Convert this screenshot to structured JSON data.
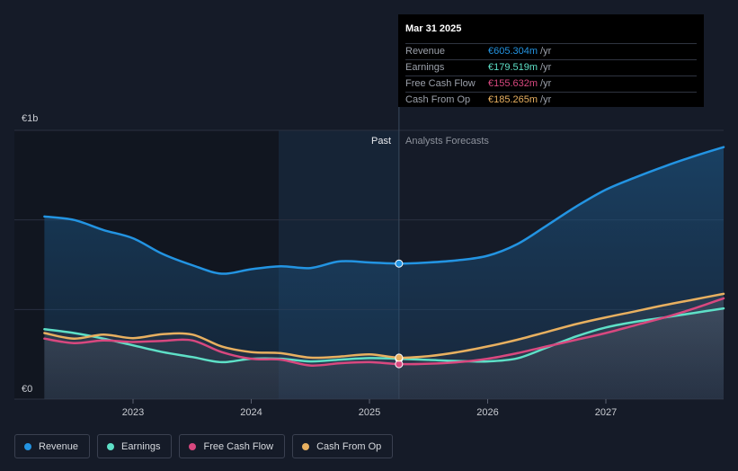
{
  "chart_data": {
    "type": "area",
    "currency_unit": "€",
    "y_axis": {
      "top_label": "€1b",
      "bottom_label": "€0",
      "ylim": [
        0,
        1200
      ]
    },
    "x_ticks": [
      "2023",
      "2024",
      "2025",
      "2026",
      "2027"
    ],
    "past_label": "Past",
    "forecast_label": "Analysts Forecasts",
    "split_date": 2025.25,
    "series": [
      {
        "name": "Revenue",
        "color": "#2394e2",
        "x": [
          2022.25,
          2022.5,
          2022.75,
          2023.0,
          2023.25,
          2023.5,
          2023.75,
          2024.0,
          2024.25,
          2024.5,
          2024.75,
          2025.0,
          2025.25,
          2025.5,
          2025.75,
          2026.0,
          2026.25,
          2026.5,
          2026.75,
          2027.0,
          2027.25,
          2027.5,
          2027.75,
          2028.0
        ],
        "values": [
          815,
          800,
          755,
          718,
          648,
          598,
          560,
          580,
          593,
          585,
          615,
          610,
          605,
          610,
          620,
          640,
          692,
          775,
          860,
          935,
          990,
          1040,
          1085,
          1125
        ]
      },
      {
        "name": "Earnings",
        "color": "#5ee0c7",
        "x": [
          2022.25,
          2022.5,
          2022.75,
          2023.0,
          2023.25,
          2023.5,
          2023.75,
          2024.0,
          2024.25,
          2024.5,
          2024.75,
          2025.0,
          2025.25,
          2025.5,
          2025.75,
          2026.0,
          2026.25,
          2026.5,
          2026.75,
          2027.0,
          2027.25,
          2027.5,
          2027.75,
          2028.0
        ],
        "values": [
          312,
          295,
          270,
          240,
          210,
          188,
          165,
          180,
          180,
          168,
          176,
          183,
          180,
          175,
          170,
          168,
          182,
          230,
          280,
          320,
          345,
          365,
          385,
          405
        ]
      },
      {
        "name": "Free Cash Flow",
        "color": "#d8487f",
        "x": [
          2022.25,
          2022.5,
          2022.75,
          2023.0,
          2023.25,
          2023.5,
          2023.75,
          2024.0,
          2024.25,
          2024.5,
          2024.75,
          2025.0,
          2025.25,
          2025.5,
          2025.75,
          2026.0,
          2026.25,
          2026.5,
          2026.75,
          2027.0,
          2027.25,
          2027.5,
          2027.75,
          2028.0
        ],
        "values": [
          270,
          250,
          262,
          255,
          260,
          262,
          210,
          180,
          176,
          150,
          160,
          165,
          156,
          158,
          165,
          180,
          205,
          235,
          265,
          295,
          330,
          365,
          405,
          450
        ]
      },
      {
        "name": "Cash From Op",
        "color": "#e8b060",
        "x": [
          2022.25,
          2022.5,
          2022.75,
          2023.0,
          2023.25,
          2023.5,
          2023.75,
          2024.0,
          2024.25,
          2024.5,
          2024.75,
          2025.0,
          2025.25,
          2025.5,
          2025.75,
          2026.0,
          2026.25,
          2026.5,
          2026.75,
          2027.0,
          2027.25,
          2027.5,
          2027.75,
          2028.0
        ],
        "values": [
          295,
          270,
          288,
          272,
          290,
          288,
          235,
          210,
          205,
          185,
          190,
          200,
          185,
          192,
          210,
          235,
          265,
          300,
          335,
          365,
          392,
          420,
          445,
          470
        ]
      }
    ]
  },
  "tooltip": {
    "date": "Mar 31 2025",
    "rows": [
      {
        "label": "Revenue",
        "value": "€605.304m",
        "unit": "/yr",
        "color": "#2394e2"
      },
      {
        "label": "Earnings",
        "value": "€179.519m",
        "unit": "/yr",
        "color": "#5ee0c7"
      },
      {
        "label": "Free Cash Flow",
        "value": "€155.632m",
        "unit": "/yr",
        "color": "#d8487f"
      },
      {
        "label": "Cash From Op",
        "value": "€185.265m",
        "unit": "/yr",
        "color": "#e8b060"
      }
    ]
  },
  "legend": [
    {
      "label": "Revenue",
      "color": "#2394e2"
    },
    {
      "label": "Earnings",
      "color": "#5ee0c7"
    },
    {
      "label": "Free Cash Flow",
      "color": "#d8487f"
    },
    {
      "label": "Cash From Op",
      "color": "#e8b060"
    }
  ]
}
